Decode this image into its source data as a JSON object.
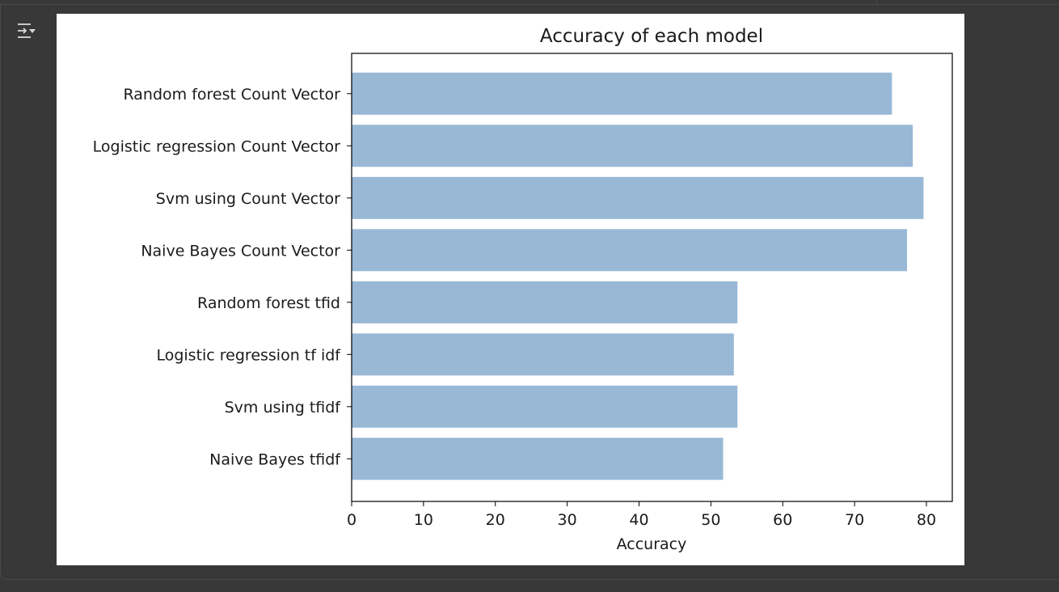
{
  "output_toggle": {
    "icon": "output-collapse-icon"
  },
  "chart_data": {
    "type": "bar",
    "orientation": "horizontal",
    "title": "Accuracy of each model",
    "xlabel": "Accuracy",
    "ylabel": "",
    "xlim": [
      0,
      83.6
    ],
    "xticks": [
      0,
      10,
      20,
      30,
      40,
      50,
      60,
      70,
      80
    ],
    "categories": [
      "Random forest Count Vector",
      "Logistic regression Count Vector",
      "Svm using Count Vector",
      "Naive Bayes Count Vector",
      "Random forest tfid",
      "Logistic regression tf idf",
      "Svm using tfidf",
      "Naive Bayes tfidf"
    ],
    "values": [
      75.2,
      78.1,
      79.6,
      77.3,
      53.7,
      53.2,
      53.7,
      51.7
    ],
    "bar_color": "#98b8d6",
    "grid": false,
    "legend": "none"
  }
}
